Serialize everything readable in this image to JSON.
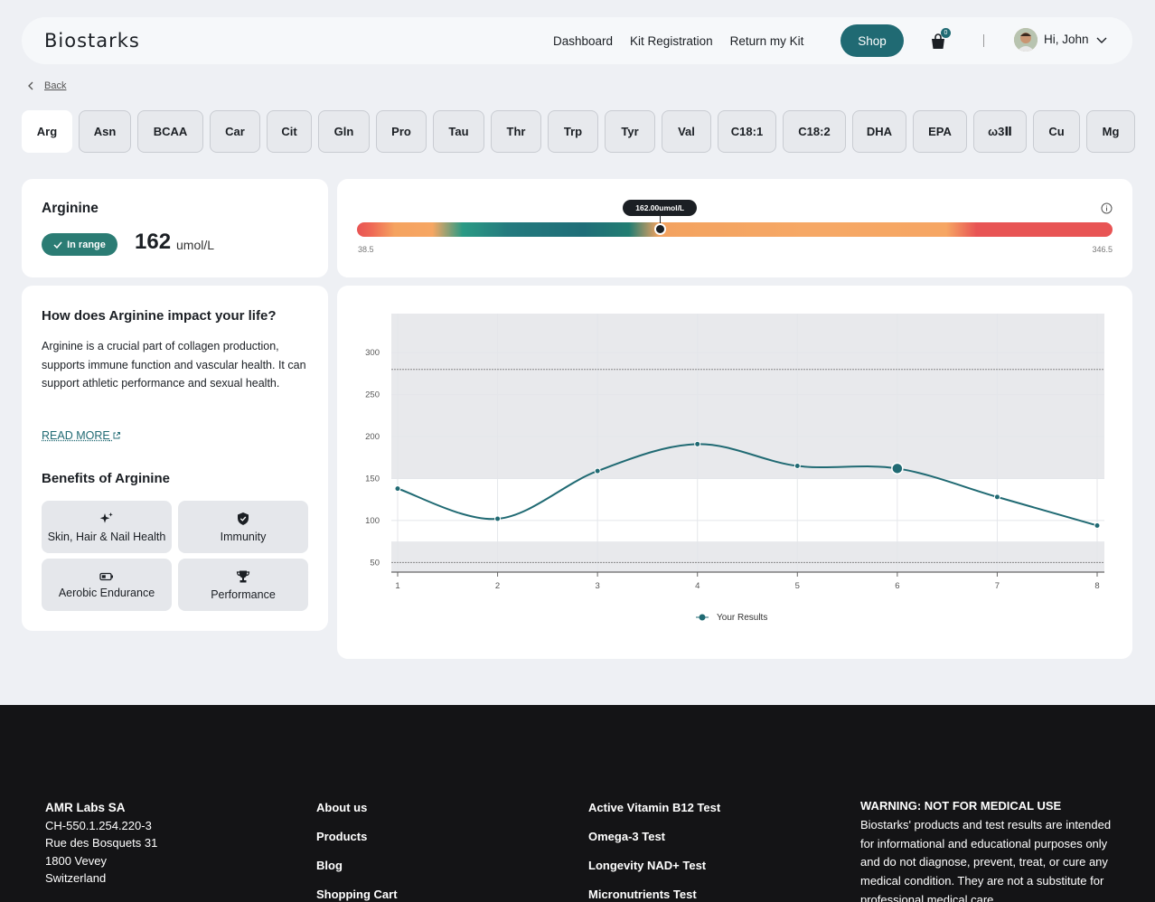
{
  "header": {
    "logo": "Biostarks",
    "nav": [
      "Dashboard",
      "Kit Registration",
      "Return my Kit"
    ],
    "shop_label": "Shop",
    "cart_count": "0",
    "greeting": "Hi, John"
  },
  "back_label": "Back",
  "tabs": [
    "Arg",
    "Asn",
    "BCAA",
    "Car",
    "Cit",
    "Gln",
    "Pro",
    "Tau",
    "Thr",
    "Trp",
    "Tyr",
    "Val",
    "C18:1",
    "C18:2",
    "DHA",
    "EPA",
    "ω3Ⅱ",
    "Cu",
    "Mg"
  ],
  "active_tab": "Arg",
  "summary": {
    "title": "Arginine",
    "status": "In range",
    "value": "162",
    "unit": "umol/L"
  },
  "range": {
    "tooltip": "162.00umol/L",
    "min_label": "38.5",
    "max_label": "346.5",
    "min": 38.5,
    "max": 346.5,
    "value": 162
  },
  "info": {
    "question": "How does Arginine impact your life?",
    "text": "Arginine is a crucial part of collagen production, supports immune function and vascular health. It can support athletic performance and sexual health.",
    "read_more": "READ MORE",
    "benefits_title": "Benefits of Arginine",
    "benefits": [
      {
        "label": "Skin, Hair & Nail Health",
        "icon": "sparkles-icon"
      },
      {
        "label": "Immunity",
        "icon": "shield-icon"
      },
      {
        "label": "Aerobic Endurance",
        "icon": "battery-icon"
      },
      {
        "label": "Performance",
        "icon": "trophy-icon"
      }
    ]
  },
  "chart_data": {
    "type": "line",
    "x": [
      1,
      2,
      3,
      4,
      5,
      6,
      7,
      8
    ],
    "series": [
      {
        "name": "Your Results",
        "values": [
          138,
          102,
          159,
          191,
          165,
          162,
          128,
          94
        ]
      }
    ],
    "yticks": [
      50,
      100,
      150,
      200,
      250,
      300
    ],
    "ylim": [
      38.5,
      346.5
    ],
    "reference_lines": [
      280,
      50
    ],
    "shaded_bands": [
      [
        150,
        346.5
      ],
      [
        38.5,
        75
      ]
    ],
    "highlight_index": 5,
    "legend": "bottom-center",
    "colors": {
      "line": "#206a73",
      "band": "#e8e9ec"
    }
  },
  "footer": {
    "company": "AMR Labs SA",
    "address": [
      "CH-550.1.254.220-3",
      "Rue des Bosquets 31",
      "1800 Vevey",
      "Switzerland"
    ],
    "links1": [
      "About us",
      "Products",
      "Blog",
      "Shopping Cart"
    ],
    "links2": [
      "Active Vitamin B12 Test",
      "Omega-3 Test",
      "Longevity NAD+ Test",
      "Micronutrients Test"
    ],
    "warning_title": "WARNING: NOT FOR MEDICAL USE",
    "warning_text": "Biostarks' products and test results are intended for informational and educational purposes only and do not diagnose, prevent, treat, or cure any medical condition. They are not a substitute for professional medical care,"
  }
}
